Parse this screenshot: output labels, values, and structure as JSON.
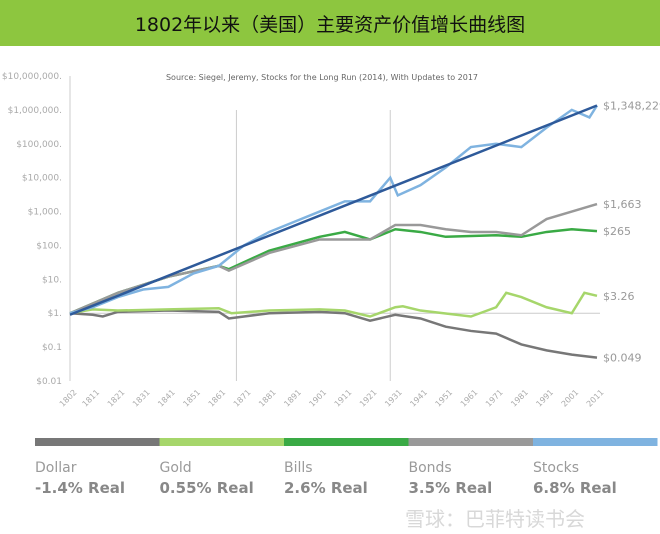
{
  "title": "1802年以来（美国）主要资产价值增长曲线图",
  "watermark": "雪球：巴菲特读书会",
  "chart_data": {
    "type": "line",
    "subtitle": "Source: Siegel, Jeremy, Stocks for the Long Run (2014), With Updates to 2017",
    "y_scale": "log",
    "ylim": [
      0.01,
      10000000
    ],
    "xlim": [
      1802,
      2017
    ],
    "y_ticks": [
      "$10,000,000.",
      "$1,000,000.",
      "$100,000.",
      "$10,000.",
      "$1,000.",
      "$100.",
      "$10.",
      "$1.",
      "$0.1",
      "$0.01"
    ],
    "x_ticks": [
      "1802",
      "1811",
      "1821",
      "1831",
      "1841",
      "1851",
      "1861",
      "1871",
      "1881",
      "1891",
      "1901",
      "1911",
      "1921",
      "1931",
      "1941",
      "1951",
      "1961",
      "1971",
      "1981",
      "1991",
      "2001",
      "2011"
    ],
    "vertical_lines": [
      1868,
      1929
    ],
    "legend_placement": "bottom",
    "series": [
      {
        "name": "Dollar",
        "rate": "-1.4% Real",
        "end_label": "$0.049",
        "color": "#777777",
        "points": [
          [
            1802,
            1
          ],
          [
            1811,
            0.9
          ],
          [
            1815,
            0.8
          ],
          [
            1821,
            1.1
          ],
          [
            1841,
            1.2
          ],
          [
            1861,
            1.1
          ],
          [
            1865,
            0.7
          ],
          [
            1881,
            1.0
          ],
          [
            1901,
            1.1
          ],
          [
            1911,
            1.0
          ],
          [
            1921,
            0.6
          ],
          [
            1931,
            0.9
          ],
          [
            1941,
            0.7
          ],
          [
            1951,
            0.4
          ],
          [
            1961,
            0.3
          ],
          [
            1971,
            0.25
          ],
          [
            1981,
            0.12
          ],
          [
            1991,
            0.08
          ],
          [
            2001,
            0.06
          ],
          [
            2011,
            0.049
          ]
        ]
      },
      {
        "name": "Gold",
        "rate": "0.55% Real",
        "end_label": "$3.26",
        "color": "#a6d66b",
        "points": [
          [
            1802,
            1
          ],
          [
            1811,
            1.3
          ],
          [
            1821,
            1.2
          ],
          [
            1841,
            1.3
          ],
          [
            1861,
            1.4
          ],
          [
            1866,
            1.0
          ],
          [
            1881,
            1.2
          ],
          [
            1901,
            1.3
          ],
          [
            1911,
            1.2
          ],
          [
            1921,
            0.8
          ],
          [
            1931,
            1.5
          ],
          [
            1934,
            1.6
          ],
          [
            1941,
            1.2
          ],
          [
            1961,
            0.8
          ],
          [
            1971,
            1.5
          ],
          [
            1975,
            4
          ],
          [
            1981,
            3
          ],
          [
            1991,
            1.5
          ],
          [
            2001,
            1
          ],
          [
            2006,
            4
          ],
          [
            2011,
            3.26
          ]
        ]
      },
      {
        "name": "Bills",
        "rate": "2.6% Real",
        "end_label": "$265",
        "color": "#3aaa45",
        "points": [
          [
            1802,
            1
          ],
          [
            1821,
            4
          ],
          [
            1841,
            12
          ],
          [
            1861,
            25
          ],
          [
            1865,
            20
          ],
          [
            1881,
            70
          ],
          [
            1901,
            180
          ],
          [
            1911,
            250
          ],
          [
            1921,
            150
          ],
          [
            1931,
            300
          ],
          [
            1941,
            250
          ],
          [
            1951,
            180
          ],
          [
            1961,
            190
          ],
          [
            1971,
            200
          ],
          [
            1981,
            180
          ],
          [
            1991,
            250
          ],
          [
            2001,
            300
          ],
          [
            2011,
            265
          ]
        ]
      },
      {
        "name": "Bonds",
        "rate": "3.5% Real",
        "end_label": "$1,663",
        "color": "#999999",
        "points": [
          [
            1802,
            1
          ],
          [
            1821,
            4
          ],
          [
            1841,
            12
          ],
          [
            1861,
            25
          ],
          [
            1865,
            18
          ],
          [
            1881,
            60
          ],
          [
            1901,
            150
          ],
          [
            1921,
            150
          ],
          [
            1931,
            400
          ],
          [
            1941,
            400
          ],
          [
            1951,
            300
          ],
          [
            1961,
            250
          ],
          [
            1971,
            250
          ],
          [
            1981,
            200
          ],
          [
            1991,
            600
          ],
          [
            2001,
            1000
          ],
          [
            2011,
            1663
          ]
        ]
      },
      {
        "name": "Stocks",
        "rate": "6.8% Real",
        "end_label": "$1,348,229",
        "color": "#7fb3e0",
        "points": [
          [
            1802,
            1
          ],
          [
            1811,
            1.5
          ],
          [
            1821,
            3
          ],
          [
            1831,
            5
          ],
          [
            1841,
            6
          ],
          [
            1851,
            15
          ],
          [
            1861,
            25
          ],
          [
            1871,
            100
          ],
          [
            1881,
            250
          ],
          [
            1891,
            500
          ],
          [
            1901,
            1000
          ],
          [
            1911,
            2000
          ],
          [
            1921,
            2000
          ],
          [
            1929,
            10000
          ],
          [
            1932,
            3000
          ],
          [
            1941,
            6000
          ],
          [
            1951,
            20000
          ],
          [
            1961,
            80000
          ],
          [
            1971,
            100000
          ],
          [
            1981,
            80000
          ],
          [
            1991,
            300000
          ],
          [
            2001,
            1000000
          ],
          [
            2008,
            600000
          ],
          [
            2011,
            1348229
          ]
        ]
      }
    ],
    "trend": {
      "color": "#2e5a9a",
      "points": [
        [
          1802,
          0.9
        ],
        [
          2011,
          1348229
        ]
      ]
    }
  }
}
